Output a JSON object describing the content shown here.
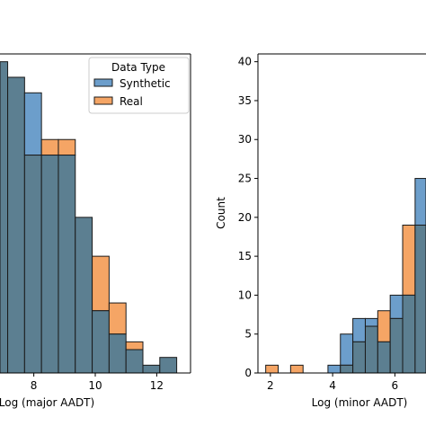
{
  "colors": {
    "synthetic": "#6c9ecb",
    "real": "#f5a565",
    "overlap": "#5c7f91"
  },
  "chart_data": [
    {
      "type": "histogram",
      "xlabel": "Log (major AADT)",
      "ylabel": "",
      "xlim": [
        6.9,
        13.1
      ],
      "ylim": [
        0,
        41
      ],
      "xticks": [
        8,
        10,
        12
      ],
      "yticks": [],
      "bin_edges": [
        6.6,
        7.15,
        7.7,
        8.25,
        8.8,
        9.35,
        9.9,
        10.45,
        11.0,
        11.55,
        12.1,
        12.65
      ],
      "legend": {
        "title": "Data Type",
        "entries": [
          "Synthetic",
          "Real"
        ],
        "position": "upper right"
      },
      "series": [
        {
          "name": "Synthetic",
          "values": [
            40,
            38,
            36,
            28,
            28,
            20,
            8,
            5,
            3,
            1,
            2
          ]
        },
        {
          "name": "Real",
          "values": [
            40,
            38,
            28,
            30,
            30,
            20,
            15,
            9,
            4,
            1,
            2
          ]
        }
      ]
    },
    {
      "type": "histogram",
      "xlabel": "Log (minor AADT)",
      "ylabel": "Count",
      "xlim": [
        1.6,
        7.0
      ],
      "ylim": [
        0,
        41
      ],
      "xticks": [
        2,
        4,
        6
      ],
      "yticks": [
        0,
        5,
        10,
        15,
        20,
        25,
        30,
        35,
        40
      ],
      "bin_edges": [
        1.85,
        2.25,
        2.65,
        3.05,
        3.45,
        3.85,
        4.25,
        4.65,
        5.05,
        5.45,
        5.85,
        6.25,
        6.65,
        7.05
      ],
      "series": [
        {
          "name": "Synthetic",
          "values": [
            0,
            0,
            0,
            0,
            0,
            1,
            5,
            7,
            7,
            4,
            10,
            10,
            25
          ]
        },
        {
          "name": "Real",
          "values": [
            1,
            0,
            1,
            0,
            0,
            0,
            1,
            4,
            6,
            8,
            7,
            19,
            19
          ]
        }
      ]
    }
  ]
}
